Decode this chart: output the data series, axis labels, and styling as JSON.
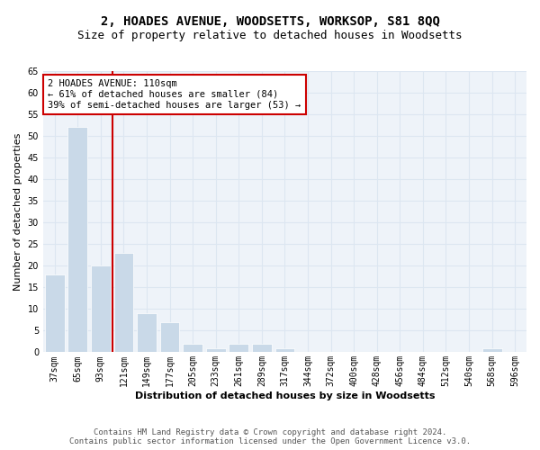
{
  "title": "2, HOADES AVENUE, WOODSETTS, WORKSOP, S81 8QQ",
  "subtitle": "Size of property relative to detached houses in Woodsetts",
  "xlabel": "Distribution of detached houses by size in Woodsetts",
  "ylabel": "Number of detached properties",
  "bar_labels": [
    "37sqm",
    "65sqm",
    "93sqm",
    "121sqm",
    "149sqm",
    "177sqm",
    "205sqm",
    "233sqm",
    "261sqm",
    "289sqm",
    "317sqm",
    "344sqm",
    "372sqm",
    "400sqm",
    "428sqm",
    "456sqm",
    "484sqm",
    "512sqm",
    "540sqm",
    "568sqm",
    "596sqm"
  ],
  "bar_values": [
    18,
    52,
    20,
    23,
    9,
    7,
    2,
    1,
    2,
    2,
    1,
    0,
    0,
    0,
    0,
    0,
    0,
    0,
    0,
    1,
    0
  ],
  "bar_color": "#c9d9e8",
  "vline_color": "#cc0000",
  "annotation_text": "2 HOADES AVENUE: 110sqm\n← 61% of detached houses are smaller (84)\n39% of semi-detached houses are larger (53) →",
  "annotation_box_color": "#cc0000",
  "ylim": [
    0,
    65
  ],
  "grid_color": "#dce6f1",
  "bg_color": "#eef3f9",
  "footer_line1": "Contains HM Land Registry data © Crown copyright and database right 2024.",
  "footer_line2": "Contains public sector information licensed under the Open Government Licence v3.0.",
  "title_fontsize": 10,
  "subtitle_fontsize": 9,
  "axis_label_fontsize": 8,
  "tick_fontsize": 7,
  "annotation_fontsize": 7.5,
  "footer_fontsize": 6.5
}
